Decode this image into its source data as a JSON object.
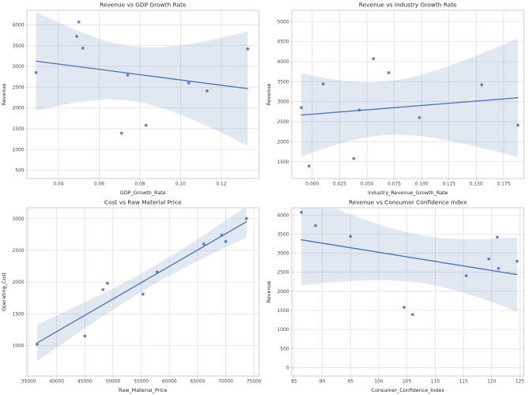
{
  "figure": {
    "background": "#ffffff",
    "accent": "#4c72b0",
    "band_opacity": 0.16,
    "point_opacity": 0.85,
    "grid_color": "#dcdde5",
    "spine_color": "#c9cad1",
    "tick_mark_color": "#bfc0c7",
    "title_color": "#262626",
    "tick_text_color": "#444444"
  },
  "chart_data": [
    {
      "type": "scatter",
      "title": "Revenue vs GDP Growth Rate",
      "xlabel": "GDP_Growth_Rate",
      "ylabel": "Revenue",
      "x": [
        0.029,
        0.05,
        0.049,
        0.052,
        0.071,
        0.074,
        0.083,
        0.104,
        0.113,
        0.133
      ],
      "y": [
        2850,
        4070,
        3720,
        3440,
        1390,
        2790,
        1580,
        2600,
        2410,
        3420
      ],
      "regression": true,
      "ci": 95,
      "grid": true,
      "legend": "none",
      "xlim": [
        0.0245,
        0.1385
      ],
      "ylim": [
        300,
        4350
      ],
      "xticks": [
        0.04,
        0.06,
        0.08,
        0.1,
        0.12
      ],
      "xtick_labels": [
        "0.04",
        "0.06",
        "0.08",
        "0.10",
        "0.12"
      ],
      "yticks": [
        500,
        1000,
        1500,
        2000,
        2500,
        3000,
        3500,
        4000
      ],
      "ytick_labels": [
        "500",
        "1000",
        "1500",
        "2000",
        "2500",
        "3000",
        "3500",
        "4000"
      ]
    },
    {
      "type": "scatter",
      "title": "Revenue vs Industry Growth Rate",
      "xlabel": "Industry_Revenue_Growth_Rate",
      "ylabel": "Revenue",
      "x": [
        -0.01,
        -0.003,
        0.01,
        0.038,
        0.043,
        0.056,
        0.07,
        0.098,
        0.155,
        0.188
      ],
      "y": [
        2850,
        1390,
        3440,
        1580,
        2790,
        4070,
        3720,
        2600,
        3420,
        2410
      ],
      "regression": true,
      "ci": 95,
      "grid": true,
      "legend": "none",
      "xlim": [
        -0.0187,
        0.1935
      ],
      "ylim": [
        1080,
        5280
      ],
      "xticks": [
        0.0,
        0.025,
        0.05,
        0.075,
        0.1,
        0.125,
        0.15,
        0.175
      ],
      "xtick_labels": [
        "0.000",
        "0.025",
        "0.050",
        "0.075",
        "0.100",
        "0.125",
        "0.150",
        "0.175"
      ],
      "yticks": [
        1500,
        2000,
        2500,
        3000,
        3500,
        4000,
        4500,
        5000
      ],
      "ytick_labels": [
        "1500",
        "2000",
        "2500",
        "3000",
        "3500",
        "4000",
        "4500",
        "5000"
      ]
    },
    {
      "type": "scatter",
      "title": "Cost vs Raw Material Price",
      "xlabel": "Raw_Material_Price",
      "ylabel": "Operating_Cost",
      "x": [
        36500,
        45000,
        48200,
        49000,
        55300,
        57800,
        66100,
        69300,
        70000,
        73700
      ],
      "y": [
        1020,
        1150,
        1880,
        1980,
        1810,
        2160,
        2600,
        2740,
        2640,
        3000
      ],
      "regression": true,
      "ci": 95,
      "grid": true,
      "legend": "none",
      "xlim": [
        34700,
        75900
      ],
      "ylim": [
        520,
        3170
      ],
      "xticks": [
        35000,
        40000,
        45000,
        50000,
        55000,
        60000,
        65000,
        70000,
        75000
      ],
      "xtick_labels": [
        "35000",
        "40000",
        "45000",
        "50000",
        "55000",
        "60000",
        "65000",
        "70000",
        "75000"
      ],
      "yticks": [
        1000,
        1500,
        2000,
        2500,
        3000
      ],
      "ytick_labels": [
        "1000",
        "1500",
        "2000",
        "2500",
        "3000"
      ]
    },
    {
      "type": "scatter",
      "title": "Revenue vs Consumer Confidence Index",
      "xlabel": "Consumer_Confidence_Index",
      "ylabel": "Revenue",
      "x": [
        86.3,
        88.8,
        95.0,
        104.5,
        106.0,
        115.5,
        119.5,
        121.0,
        121.2,
        124.5
      ],
      "y": [
        4070,
        3720,
        3440,
        1580,
        1390,
        2410,
        2850,
        3420,
        2600,
        2790
      ],
      "regression": true,
      "ci": 95,
      "grid": true,
      "legend": "none",
      "xlim": [
        84.6,
        125.7
      ],
      "ylim": [
        -220,
        4190
      ],
      "xticks": [
        85,
        90,
        95,
        100,
        105,
        110,
        115,
        120,
        125
      ],
      "xtick_labels": [
        "85",
        "90",
        "95",
        "100",
        "105",
        "110",
        "115",
        "120",
        "125"
      ],
      "yticks": [
        0,
        500,
        1000,
        1500,
        2000,
        2500,
        3000,
        3500,
        4000
      ],
      "ytick_labels": [
        "0",
        "500",
        "1000",
        "1500",
        "2000",
        "2500",
        "3000",
        "3500",
        "4000"
      ]
    }
  ]
}
